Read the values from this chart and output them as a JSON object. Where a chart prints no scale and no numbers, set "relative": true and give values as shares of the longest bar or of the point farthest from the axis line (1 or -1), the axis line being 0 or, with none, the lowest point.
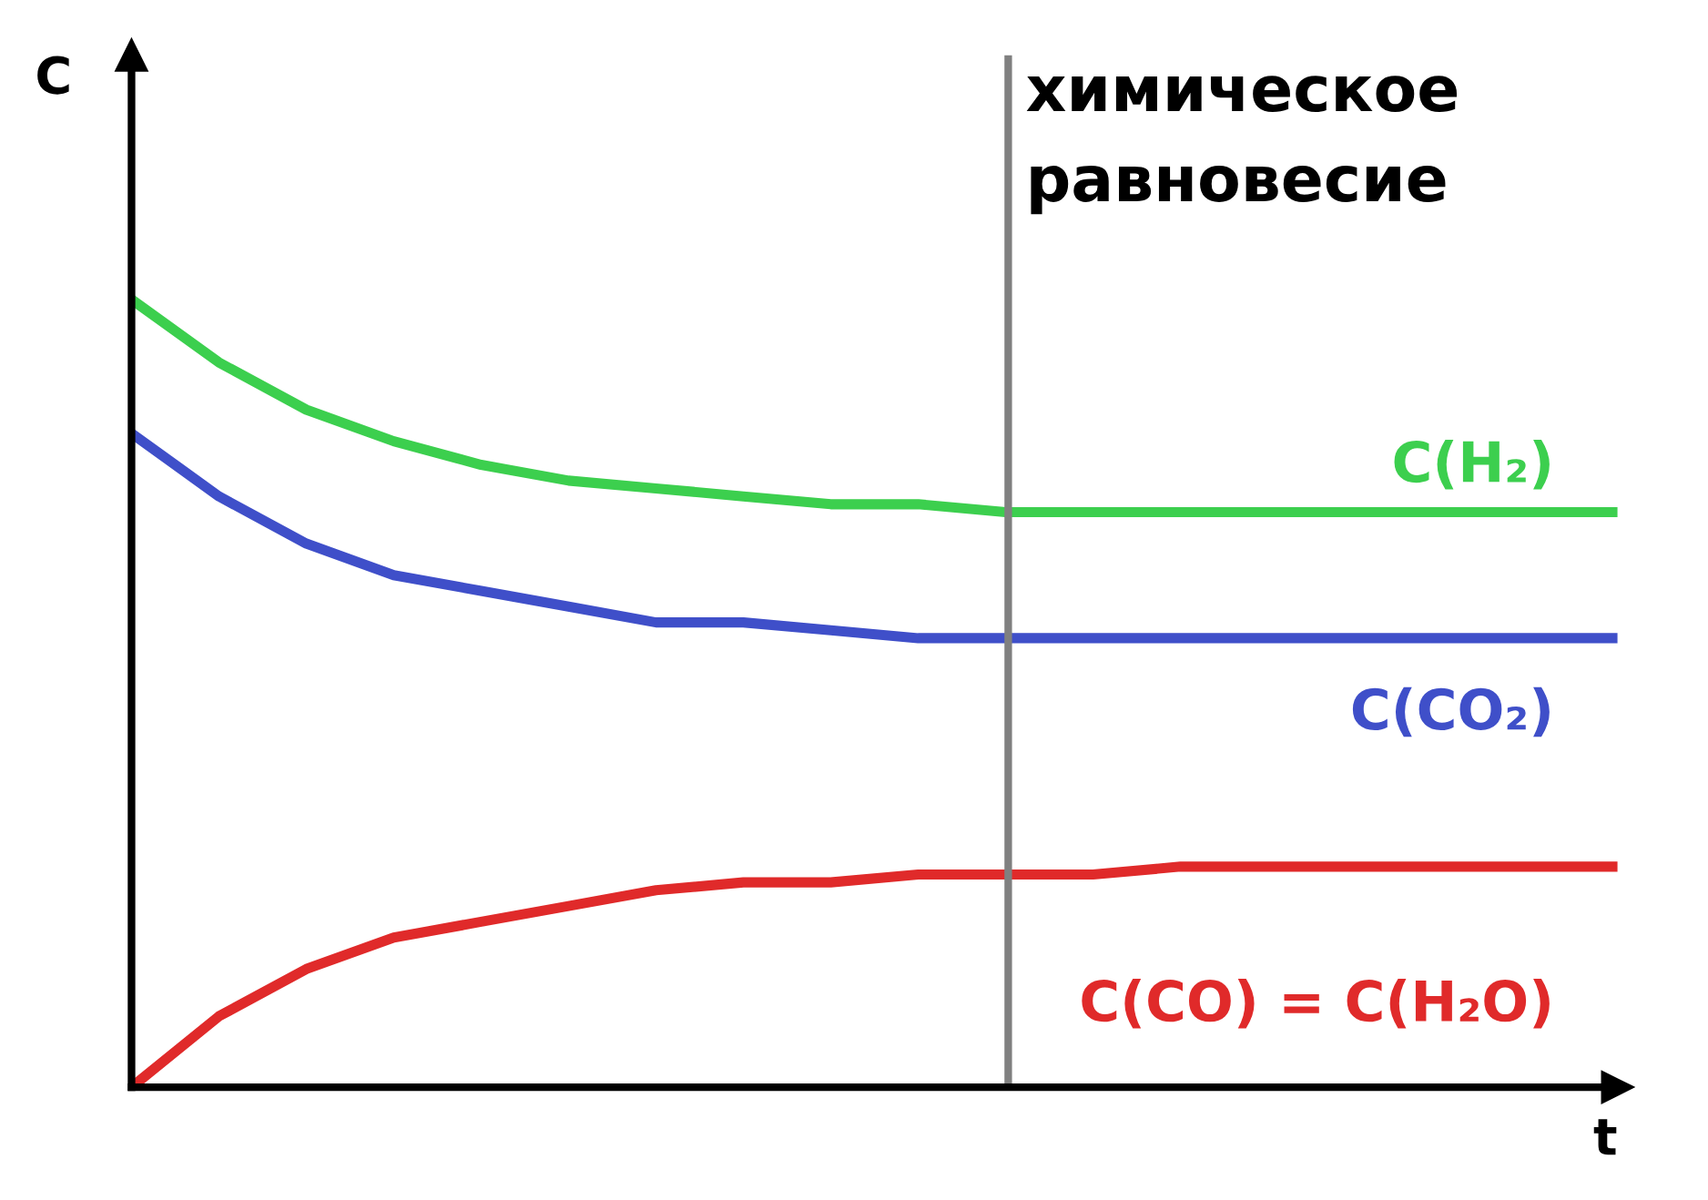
{
  "chart_data": {
    "type": "line",
    "relative": true,
    "xlabel": "t",
    "ylabel": "C",
    "categories": [
      null,
      null,
      null,
      null,
      null,
      null,
      null,
      null,
      null,
      null,
      null,
      null,
      null,
      null,
      null,
      null,
      null,
      null
    ],
    "series": [
      {
        "name": "C(H₂)",
        "color": "#3ccf4e",
        "values": [
          1.0,
          0.92,
          0.86,
          0.82,
          0.79,
          0.77,
          0.76,
          0.75,
          0.74,
          0.74,
          0.73,
          0.73,
          0.73,
          0.73,
          0.73,
          0.73,
          0.73,
          0.73
        ]
      },
      {
        "name": "C(CO₂)",
        "color": "#3f4fc9",
        "values": [
          0.83,
          0.75,
          0.69,
          0.65,
          0.63,
          0.61,
          0.59,
          0.59,
          0.58,
          0.57,
          0.57,
          0.57,
          0.57,
          0.57,
          0.57,
          0.57,
          0.57,
          0.57
        ]
      },
      {
        "name": "C(CO) = C(H₂O)",
        "color": "#e02a2a",
        "values": [
          0.0,
          0.09,
          0.15,
          0.19,
          0.21,
          0.23,
          0.25,
          0.26,
          0.26,
          0.27,
          0.27,
          0.27,
          0.28,
          0.28,
          0.28,
          0.28,
          0.28,
          0.28
        ]
      }
    ],
    "annotations": [
      "химическое\nравновесие"
    ],
    "legend": false,
    "grid": false,
    "marker": "none",
    "line_style": "solid"
  }
}
